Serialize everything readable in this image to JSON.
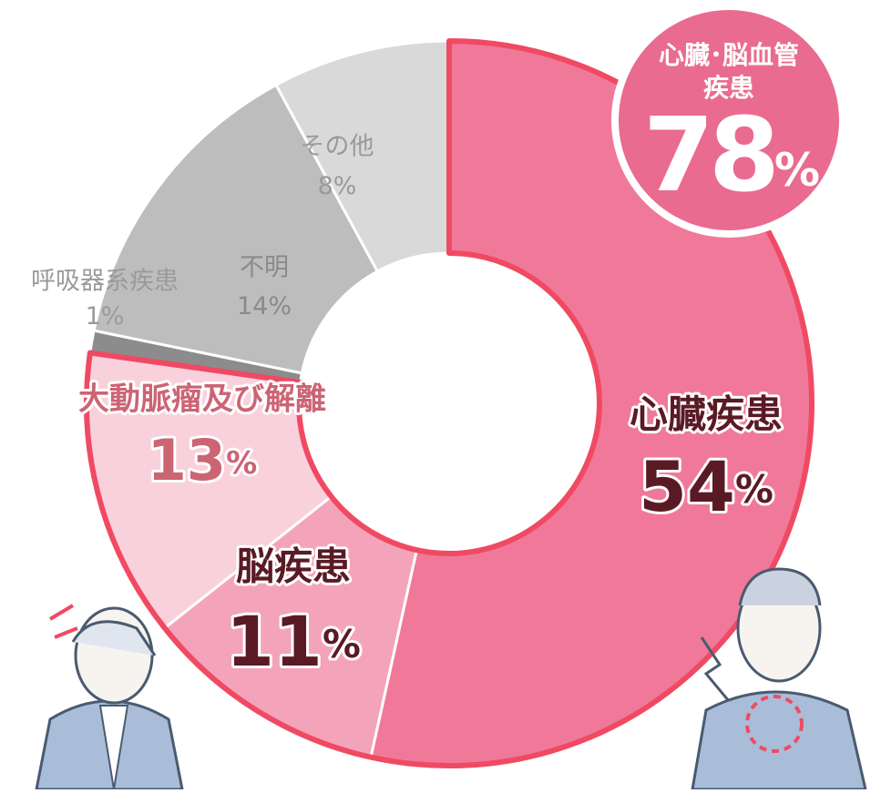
{
  "chart_data": {
    "type": "pie",
    "categories": [
      "心臓疾患",
      "脳疾患",
      "大動脈瘤及び解離",
      "呼吸器系疾患",
      "不明",
      "その他"
    ],
    "values": [
      54,
      11,
      13,
      1,
      14,
      8
    ],
    "unit": "%",
    "colors": [
      "#f0799a",
      "#f4a4ba",
      "#f9d1dc",
      "#8c8c8c",
      "#bdbdbd",
      "#d9d9d9"
    ],
    "outline_color": "#f04a63",
    "annotation": {
      "lines": [
        "心臓･脳血管",
        "疾患"
      ],
      "value": 78
    }
  }
}
